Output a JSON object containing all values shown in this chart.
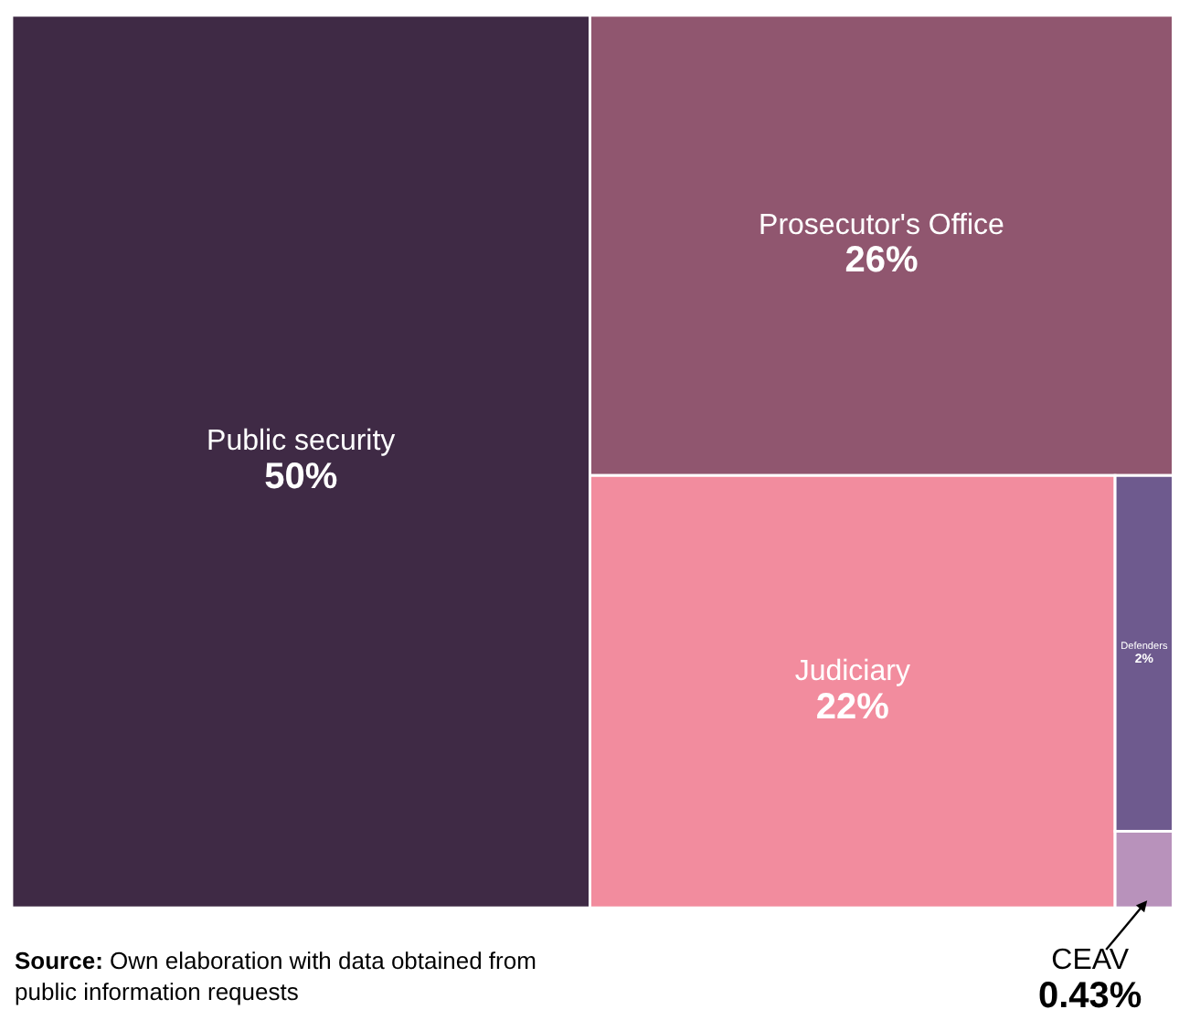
{
  "chart_data": {
    "type": "other",
    "categories": [
      "Public security",
      "Prosecutor's Office",
      "Judiciary",
      "Defenders",
      "CEAV"
    ],
    "values": [
      50,
      26,
      22,
      2,
      0.43
    ],
    "value_labels": [
      "50%",
      "26%",
      "22%",
      "2%",
      "0.43%"
    ],
    "colors": [
      "#3f2a45",
      "#90566f",
      "#f28c9e",
      "#6e5a8e",
      "#b892bb"
    ],
    "annotations": [
      "Source: Own elaboration with data obtained from public information requests"
    ]
  }
}
